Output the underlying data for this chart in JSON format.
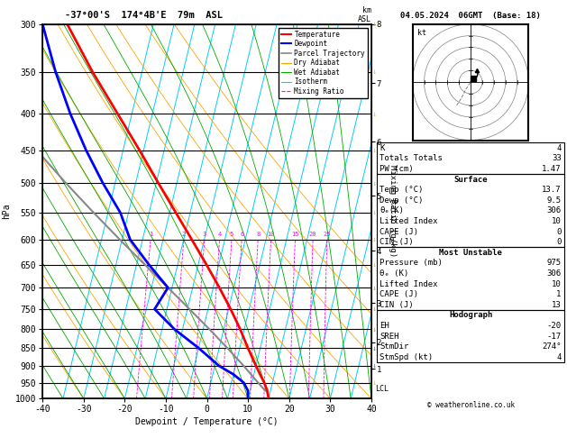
{
  "title_left": "-37°00'S  174°4B'E  79m  ASL",
  "title_right": "04.05.2024  06GMT  (Base: 18)",
  "xlabel": "Dewpoint / Temperature (°C)",
  "ylabel_left": "hPa",
  "pressure_levels": [
    300,
    350,
    400,
    450,
    500,
    550,
    600,
    650,
    700,
    750,
    800,
    850,
    900,
    950,
    1000
  ],
  "temp_xlim": [
    -40,
    40
  ],
  "isotherm_temps": [
    -35,
    -30,
    -25,
    -20,
    -15,
    -10,
    -5,
    0,
    5,
    10,
    15,
    20,
    25,
    30,
    35,
    40
  ],
  "dry_adiabat_color": "#FFA500",
  "wet_adiabat_color": "#00AA00",
  "isotherm_color": "#00CCFF",
  "mixing_ratio_color": "#FF00FF",
  "temperature_color": "#FF0000",
  "dewpoint_color": "#0000FF",
  "parcel_color": "#888888",
  "lcl_pressure": 970,
  "km_ticks": [
    1,
    2,
    3,
    4,
    5,
    6,
    7,
    8
  ],
  "km_pressures": [
    900,
    820,
    715,
    595,
    490,
    405,
    330,
    268
  ],
  "temperature_profile": {
    "pressure": [
      1000,
      975,
      950,
      925,
      900,
      850,
      800,
      750,
      700,
      650,
      600,
      550,
      500,
      450,
      400,
      350,
      300
    ],
    "temp": [
      15.0,
      14.2,
      13.0,
      11.5,
      10.0,
      7.0,
      4.0,
      0.5,
      -3.5,
      -8.0,
      -13.0,
      -18.5,
      -24.5,
      -31.0,
      -38.5,
      -47.0,
      -56.0
    ]
  },
  "dewpoint_profile": {
    "pressure": [
      1000,
      975,
      950,
      925,
      900,
      850,
      800,
      750,
      700,
      650,
      600,
      550,
      500,
      450,
      400,
      350,
      300
    ],
    "temp": [
      10.0,
      9.5,
      8.0,
      5.0,
      1.0,
      -5.0,
      -12.0,
      -18.0,
      -16.0,
      -22.0,
      -28.0,
      -32.0,
      -38.0,
      -44.0,
      -50.0,
      -56.0,
      -62.0
    ]
  },
  "parcel_profile": {
    "pressure": [
      975,
      950,
      900,
      850,
      800,
      750,
      700,
      650,
      600,
      550,
      500,
      450,
      400,
      350,
      300
    ],
    "temp": [
      13.7,
      11.5,
      7.0,
      2.0,
      -3.5,
      -9.5,
      -16.0,
      -23.0,
      -30.5,
      -38.5,
      -47.0,
      -56.0,
      -65.0,
      -74.0,
      -83.0
    ]
  },
  "info_table": {
    "K": 4,
    "Totals Totals": 33,
    "PW (cm)": 1.47,
    "Surface": {
      "Temp (C)": 13.7,
      "Dewp (C)": 9.5,
      "theta_e (K)": 306,
      "Lifted Index": 10,
      "CAPE (J)": 0,
      "CIN (J)": 0
    },
    "Most Unstable": {
      "Pressure (mb)": 975,
      "theta_e (K)": 306,
      "Lifted Index": 10,
      "CAPE (J)": 1,
      "CIN (J)": 13
    },
    "Hodograph": {
      "EH": -20,
      "SREH": -17,
      "StmDir": 274,
      "StmSpd (kt)": 4
    }
  },
  "background_color": "#FFFFFF",
  "skew_amount": 22
}
